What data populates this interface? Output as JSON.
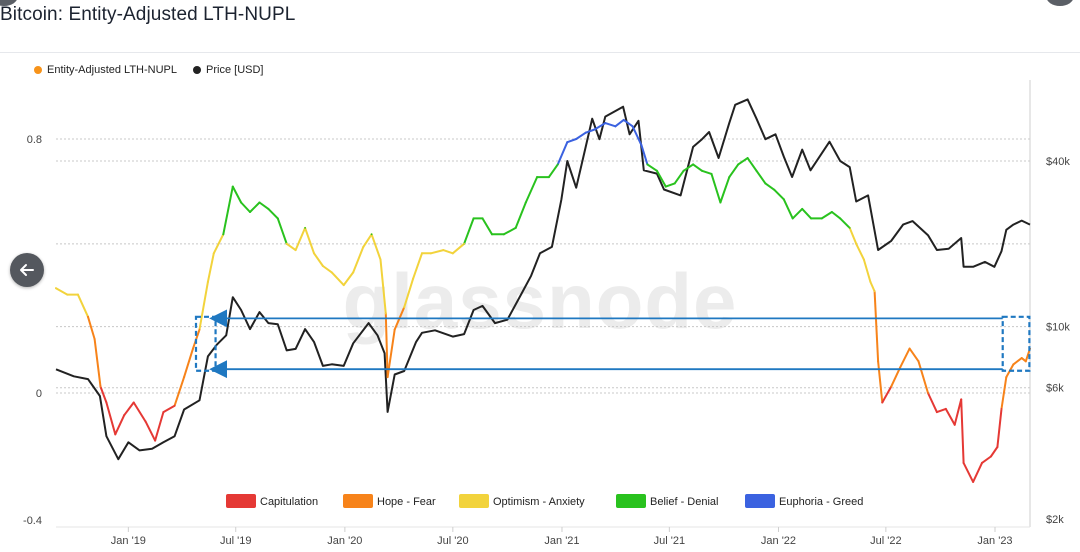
{
  "page": {
    "title": "Bitcoin: Entity-Adjusted LTH-NUPL",
    "watermark": "glassnode"
  },
  "legend_top": [
    {
      "label": "Entity-Adjusted LTH-NUPL",
      "color": "#f7931a"
    },
    {
      "label": "Price [USD]",
      "color": "#222222"
    }
  ],
  "chart_data": {
    "type": "line",
    "title": "Bitcoin: Entity-Adjusted LTH-NUPL",
    "x_ticks": [
      "Jan '19",
      "Jul '19",
      "Jan '20",
      "Jul '20",
      "Jan '21",
      "Jul '21",
      "Jan '22",
      "Jul '22",
      "Jan '23"
    ],
    "x_range": [
      "2018-09-01",
      "2023-03-01"
    ],
    "y_left": {
      "range": [
        -0.4,
        1.0
      ],
      "ticks": [
        0.8,
        0,
        -0.4
      ],
      "tick_labels": [
        "0.8",
        "0",
        "-0.4"
      ]
    },
    "y_right": {
      "scale": "log",
      "range": [
        2000,
        80000
      ],
      "ticks": [
        40000,
        10000,
        6000,
        2000
      ],
      "tick_labels": [
        "$40k",
        "$10k",
        "$6k",
        "$2k"
      ]
    },
    "grid": true,
    "zones": [
      {
        "name": "Capitulation",
        "color": "#e53935",
        "range": [
          -1,
          0
        ]
      },
      {
        "name": "Hope - Fear",
        "color": "#f7831a",
        "range": [
          0,
          0.25
        ]
      },
      {
        "name": "Optimism - Anxiety",
        "color": "#f2d33c",
        "range": [
          0.25,
          0.5
        ]
      },
      {
        "name": "Belief - Denial",
        "color": "#29c21e",
        "range": [
          0.5,
          0.75
        ]
      },
      {
        "name": "Euphoria - Greed",
        "color": "#3b62e0",
        "range": [
          0.75,
          1
        ]
      }
    ],
    "series": [
      {
        "name": "Entity-Adjusted LTH-NUPL",
        "points": [
          [
            "2018-09-01",
            0.33
          ],
          [
            "2018-09-20",
            0.31
          ],
          [
            "2018-10-08",
            0.31
          ],
          [
            "2018-10-25",
            0.24
          ],
          [
            "2018-11-05",
            0.17
          ],
          [
            "2018-11-15",
            0.02
          ],
          [
            "2018-11-25",
            -0.03
          ],
          [
            "2018-12-10",
            -0.13
          ],
          [
            "2018-12-25",
            -0.07
          ],
          [
            "2019-01-10",
            -0.03
          ],
          [
            "2019-01-30",
            -0.09
          ],
          [
            "2019-02-15",
            -0.15
          ],
          [
            "2019-03-01",
            -0.06
          ],
          [
            "2019-03-20",
            -0.04
          ],
          [
            "2019-04-05",
            0.05
          ],
          [
            "2019-04-20",
            0.14
          ],
          [
            "2019-05-01",
            0.2
          ],
          [
            "2019-05-15",
            0.35
          ],
          [
            "2019-05-25",
            0.44
          ],
          [
            "2019-06-10",
            0.5
          ],
          [
            "2019-06-26",
            0.65
          ],
          [
            "2019-07-10",
            0.6
          ],
          [
            "2019-07-25",
            0.57
          ],
          [
            "2019-08-10",
            0.6
          ],
          [
            "2019-08-25",
            0.58
          ],
          [
            "2019-09-10",
            0.55
          ],
          [
            "2019-09-25",
            0.47
          ],
          [
            "2019-10-10",
            0.45
          ],
          [
            "2019-10-26",
            0.52
          ],
          [
            "2019-11-10",
            0.44
          ],
          [
            "2019-11-25",
            0.4
          ],
          [
            "2019-12-10",
            0.38
          ],
          [
            "2019-12-30",
            0.34
          ],
          [
            "2020-01-15",
            0.38
          ],
          [
            "2020-02-01",
            0.46
          ],
          [
            "2020-02-15",
            0.5
          ],
          [
            "2020-03-01",
            0.42
          ],
          [
            "2020-03-10",
            0.25
          ],
          [
            "2020-03-13",
            0.05
          ],
          [
            "2020-03-25",
            0.2
          ],
          [
            "2020-04-10",
            0.27
          ],
          [
            "2020-04-25",
            0.36
          ],
          [
            "2020-05-10",
            0.44
          ],
          [
            "2020-05-25",
            0.44
          ],
          [
            "2020-06-15",
            0.45
          ],
          [
            "2020-07-01",
            0.44
          ],
          [
            "2020-07-20",
            0.47
          ],
          [
            "2020-08-05",
            0.55
          ],
          [
            "2020-08-20",
            0.55
          ],
          [
            "2020-09-05",
            0.5
          ],
          [
            "2020-09-25",
            0.5
          ],
          [
            "2020-10-15",
            0.52
          ],
          [
            "2020-11-01",
            0.6
          ],
          [
            "2020-11-20",
            0.68
          ],
          [
            "2020-12-10",
            0.68
          ],
          [
            "2020-12-25",
            0.72
          ],
          [
            "2021-01-10",
            0.79
          ],
          [
            "2021-01-25",
            0.8
          ],
          [
            "2021-02-10",
            0.82
          ],
          [
            "2021-02-25",
            0.83
          ],
          [
            "2021-03-15",
            0.85
          ],
          [
            "2021-04-01",
            0.84
          ],
          [
            "2021-04-15",
            0.86
          ],
          [
            "2021-04-30",
            0.84
          ],
          [
            "2021-05-15",
            0.78
          ],
          [
            "2021-05-25",
            0.72
          ],
          [
            "2021-06-10",
            0.7
          ],
          [
            "2021-06-25",
            0.65
          ],
          [
            "2021-07-10",
            0.66
          ],
          [
            "2021-07-25",
            0.7
          ],
          [
            "2021-08-10",
            0.72
          ],
          [
            "2021-08-25",
            0.7
          ],
          [
            "2021-09-10",
            0.69
          ],
          [
            "2021-09-25",
            0.6
          ],
          [
            "2021-10-10",
            0.68
          ],
          [
            "2021-10-25",
            0.72
          ],
          [
            "2021-11-10",
            0.74
          ],
          [
            "2021-11-25",
            0.7
          ],
          [
            "2021-12-10",
            0.66
          ],
          [
            "2021-12-25",
            0.64
          ],
          [
            "2022-01-10",
            0.61
          ],
          [
            "2022-01-25",
            0.55
          ],
          [
            "2022-02-10",
            0.58
          ],
          [
            "2022-02-25",
            0.55
          ],
          [
            "2022-03-15",
            0.55
          ],
          [
            "2022-04-01",
            0.57
          ],
          [
            "2022-04-15",
            0.55
          ],
          [
            "2022-05-01",
            0.52
          ],
          [
            "2022-05-12",
            0.47
          ],
          [
            "2022-05-25",
            0.42
          ],
          [
            "2022-06-05",
            0.35
          ],
          [
            "2022-06-12",
            0.32
          ],
          [
            "2022-06-18",
            0.1
          ],
          [
            "2022-06-25",
            -0.03
          ],
          [
            "2022-07-10",
            0.02
          ],
          [
            "2022-07-25",
            0.08
          ],
          [
            "2022-08-10",
            0.14
          ],
          [
            "2022-08-25",
            0.1
          ],
          [
            "2022-09-10",
            0.0
          ],
          [
            "2022-09-25",
            -0.06
          ],
          [
            "2022-10-10",
            -0.05
          ],
          [
            "2022-10-25",
            -0.1
          ],
          [
            "2022-11-05",
            -0.02
          ],
          [
            "2022-11-09",
            -0.22
          ],
          [
            "2022-11-25",
            -0.28
          ],
          [
            "2022-12-10",
            -0.22
          ],
          [
            "2022-12-25",
            -0.2
          ],
          [
            "2023-01-05",
            -0.17
          ],
          [
            "2023-01-12",
            -0.05
          ],
          [
            "2023-01-20",
            0.05
          ],
          [
            "2023-02-01",
            0.09
          ],
          [
            "2023-02-15",
            0.11
          ],
          [
            "2023-02-22",
            0.1
          ],
          [
            "2023-03-01",
            0.14
          ]
        ]
      },
      {
        "name": "Price [USD]",
        "color": "#222222",
        "points": [
          [
            "2018-09-01",
            7000
          ],
          [
            "2018-10-01",
            6600
          ],
          [
            "2018-10-25",
            6450
          ],
          [
            "2018-11-14",
            5600
          ],
          [
            "2018-11-25",
            4000
          ],
          [
            "2018-12-15",
            3300
          ],
          [
            "2019-01-01",
            3800
          ],
          [
            "2019-01-20",
            3550
          ],
          [
            "2019-02-10",
            3600
          ],
          [
            "2019-03-01",
            3800
          ],
          [
            "2019-03-20",
            4000
          ],
          [
            "2019-04-05",
            5000
          ],
          [
            "2019-05-01",
            5400
          ],
          [
            "2019-05-15",
            7800
          ],
          [
            "2019-05-30",
            8600
          ],
          [
            "2019-06-15",
            9300
          ],
          [
            "2019-06-26",
            12800
          ],
          [
            "2019-07-10",
            11500
          ],
          [
            "2019-07-25",
            9800
          ],
          [
            "2019-08-10",
            11300
          ],
          [
            "2019-08-25",
            10300
          ],
          [
            "2019-09-10",
            10200
          ],
          [
            "2019-09-25",
            8200
          ],
          [
            "2019-10-10",
            8300
          ],
          [
            "2019-10-26",
            9800
          ],
          [
            "2019-11-10",
            8800
          ],
          [
            "2019-11-25",
            7200
          ],
          [
            "2019-12-10",
            7300
          ],
          [
            "2019-12-30",
            7200
          ],
          [
            "2020-01-15",
            8700
          ],
          [
            "2020-02-10",
            10300
          ],
          [
            "2020-02-25",
            9300
          ],
          [
            "2020-03-08",
            8000
          ],
          [
            "2020-03-13",
            4900
          ],
          [
            "2020-03-25",
            6700
          ],
          [
            "2020-04-10",
            6900
          ],
          [
            "2020-04-30",
            8800
          ],
          [
            "2020-05-10",
            9500
          ],
          [
            "2020-06-01",
            9700
          ],
          [
            "2020-07-01",
            9200
          ],
          [
            "2020-07-20",
            9400
          ],
          [
            "2020-08-05",
            11500
          ],
          [
            "2020-08-20",
            11900
          ],
          [
            "2020-09-10",
            10300
          ],
          [
            "2020-10-01",
            10600
          ],
          [
            "2020-10-25",
            13200
          ],
          [
            "2020-11-10",
            15300
          ],
          [
            "2020-11-25",
            18500
          ],
          [
            "2020-12-15",
            19500
          ],
          [
            "2020-12-31",
            29000
          ],
          [
            "2021-01-10",
            40000
          ],
          [
            "2021-01-25",
            32000
          ],
          [
            "2021-02-10",
            45000
          ],
          [
            "2021-02-21",
            57000
          ],
          [
            "2021-03-05",
            48000
          ],
          [
            "2021-03-15",
            58000
          ],
          [
            "2021-04-14",
            63000
          ],
          [
            "2021-04-25",
            50000
          ],
          [
            "2021-05-10",
            56000
          ],
          [
            "2021-05-19",
            37000
          ],
          [
            "2021-06-10",
            36000
          ],
          [
            "2021-06-22",
            31500
          ],
          [
            "2021-07-20",
            30000
          ],
          [
            "2021-08-10",
            45000
          ],
          [
            "2021-08-25",
            48000
          ],
          [
            "2021-09-06",
            51000
          ],
          [
            "2021-09-22",
            41000
          ],
          [
            "2021-10-10",
            55000
          ],
          [
            "2021-10-20",
            64000
          ],
          [
            "2021-11-10",
            67000
          ],
          [
            "2021-11-25",
            57000
          ],
          [
            "2021-12-10",
            48000
          ],
          [
            "2021-12-27",
            50000
          ],
          [
            "2022-01-10",
            41500
          ],
          [
            "2022-01-24",
            35000
          ],
          [
            "2022-02-10",
            44000
          ],
          [
            "2022-02-24",
            37000
          ],
          [
            "2022-03-28",
            47000
          ],
          [
            "2022-04-15",
            40000
          ],
          [
            "2022-05-01",
            38000
          ],
          [
            "2022-05-12",
            28500
          ],
          [
            "2022-06-01",
            30000
          ],
          [
            "2022-06-18",
            19000
          ],
          [
            "2022-07-10",
            20500
          ],
          [
            "2022-07-30",
            23500
          ],
          [
            "2022-08-15",
            24200
          ],
          [
            "2022-09-10",
            21500
          ],
          [
            "2022-09-25",
            19000
          ],
          [
            "2022-10-15",
            19200
          ],
          [
            "2022-11-05",
            21000
          ],
          [
            "2022-11-09",
            16500
          ],
          [
            "2022-11-25",
            16500
          ],
          [
            "2022-12-15",
            17200
          ],
          [
            "2022-12-31",
            16500
          ],
          [
            "2023-01-12",
            18800
          ],
          [
            "2023-01-20",
            22500
          ],
          [
            "2023-02-01",
            23500
          ],
          [
            "2023-02-15",
            24300
          ],
          [
            "2023-03-01",
            23500
          ]
        ]
      }
    ],
    "annotations": [
      {
        "type": "box",
        "x_range": [
          "2019-04-25",
          "2019-05-28"
        ],
        "y_range": [
          0.07,
          0.24
        ]
      },
      {
        "type": "box",
        "x_range": [
          "2023-01-14",
          "2023-02-28"
        ],
        "y_range": [
          0.07,
          0.24
        ]
      },
      {
        "type": "arrow",
        "x_range": [
          "2019-05-28",
          "2023-01-14"
        ],
        "y": 0.235
      },
      {
        "type": "arrow",
        "x_range": [
          "2019-05-28",
          "2023-01-14"
        ],
        "y": 0.075
      }
    ]
  }
}
